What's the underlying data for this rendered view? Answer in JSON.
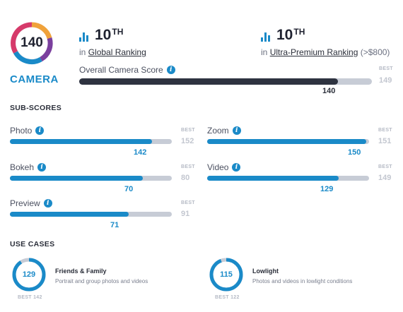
{
  "badge": {
    "score": "140",
    "label": "CAMERA"
  },
  "global_ranking": {
    "rank": "10",
    "suffix": "TH",
    "prefix": "in",
    "link": "Global Ranking"
  },
  "segment_ranking": {
    "rank": "10",
    "suffix": "TH",
    "prefix": "in",
    "link": "Ultra-Premium Ranking",
    "note": "(>$800)"
  },
  "overall": {
    "label": "Overall Camera Score",
    "value": 140,
    "best_label": "BEST",
    "best": 149
  },
  "subscores_title": "SUB-SCORES",
  "subscores": [
    {
      "label": "Photo",
      "value": 142,
      "best_label": "BEST",
      "best": 152
    },
    {
      "label": "Zoom",
      "value": 150,
      "best_label": "BEST",
      "best": 151
    },
    {
      "label": "Bokeh",
      "value": 70,
      "best_label": "BEST",
      "best": 80
    },
    {
      "label": "Video",
      "value": 129,
      "best_label": "BEST",
      "best": 149
    },
    {
      "label": "Preview",
      "value": 71,
      "best_label": "BEST",
      "best": 91
    }
  ],
  "use_cases_title": "USE CASES",
  "use_cases": [
    {
      "score": 129,
      "best": 142,
      "best_text": "BEST 142",
      "title": "Friends & Family",
      "description": "Portrait and group photos and videos"
    },
    {
      "score": 115,
      "best": 122,
      "best_text": "BEST 122",
      "title": "Lowlight",
      "description": "Photos and videos in lowlight conditions"
    }
  ],
  "colors": {
    "accent": "#1a8ac8",
    "dark": "#2e3340",
    "track": "#c7ccd6",
    "badge_orange": "#f0a23a",
    "badge_purple": "#7b3f9e"
  },
  "icons": {
    "rank": "bar-chart-icon",
    "info": "info-icon"
  }
}
